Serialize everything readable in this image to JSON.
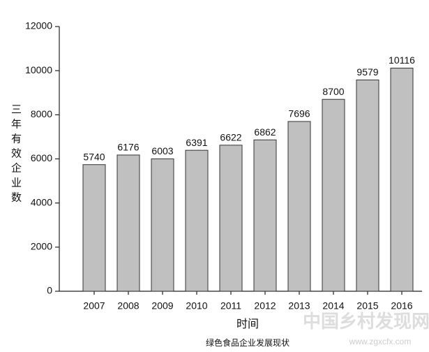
{
  "chart_data": {
    "type": "bar",
    "y_label": "三年有效企业数",
    "x_label": "时间",
    "caption": "绿色食品企业发展现状",
    "watermark": "中国乡村发现网",
    "watermark_url": "www.zgxcfx.com",
    "categories": [
      "2007",
      "2008",
      "2009",
      "2010",
      "2011",
      "2012",
      "2013",
      "2014",
      "2015",
      "2016"
    ],
    "values": [
      5740,
      6176,
      6003,
      6391,
      6622,
      6862,
      7696,
      8700,
      9579,
      10116
    ],
    "color": "#c0c0c0",
    "ylim": [
      0,
      12000
    ],
    "yticks": [
      0,
      2000,
      4000,
      6000,
      8000,
      10000,
      12000
    ]
  }
}
